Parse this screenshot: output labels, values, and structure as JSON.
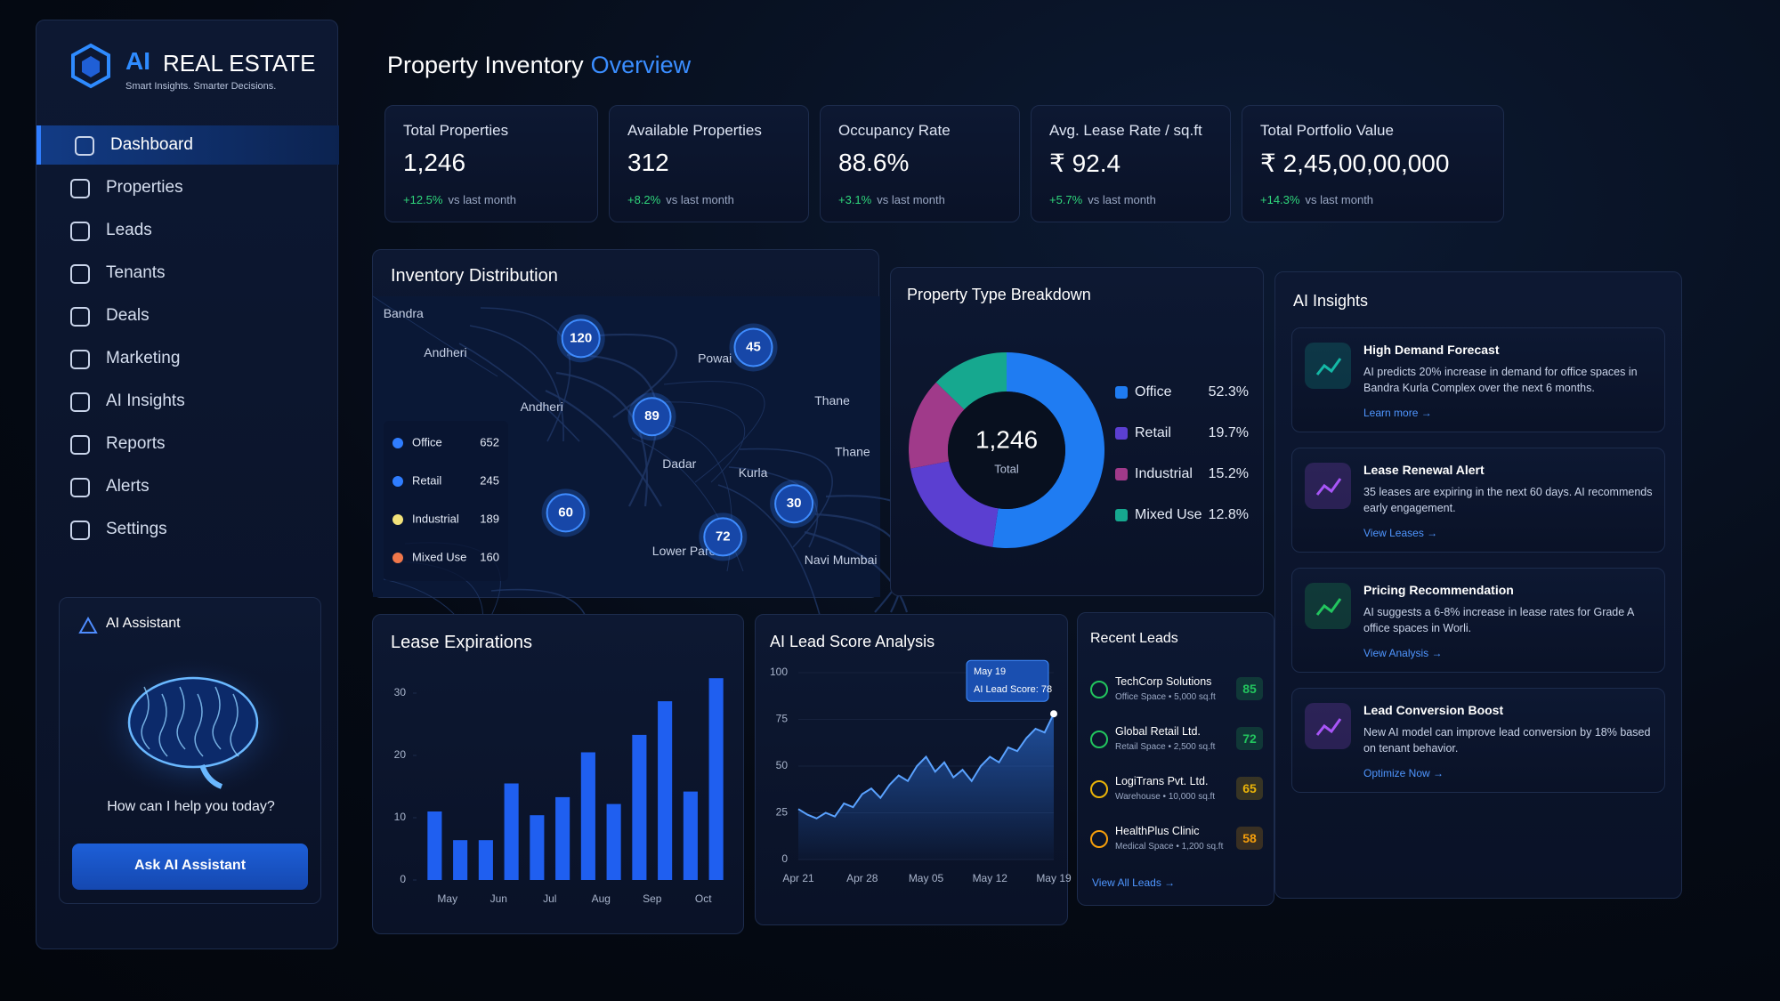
{
  "brand": {
    "logo": "AI",
    "name": "REAL ESTATE",
    "tagline": "Smart Insights. Smarter Decisions."
  },
  "nav": [
    "Dashboard",
    "Properties",
    "Leads",
    "Tenants",
    "Deals",
    "Marketing",
    "AI Insights",
    "Reports",
    "Alerts",
    "Settings"
  ],
  "assistant": {
    "title": "AI Assistant",
    "prompt": "How can I help you today?",
    "button": "Ask AI Assistant"
  },
  "header": {
    "title": "Property Inventory",
    "highlight": "Overview"
  },
  "kpis": [
    {
      "label": "Total Properties",
      "value": "1,246",
      "change": "+12.5%",
      "note": "vs last month"
    },
    {
      "label": "Available Properties",
      "value": "312",
      "change": "+8.2%",
      "note": "vs last month"
    },
    {
      "label": "Occupancy Rate",
      "value": "88.6%",
      "change": "+3.1%",
      "note": "vs last month"
    },
    {
      "label": "Avg. Lease Rate / sq.ft",
      "value": "₹ 92.4",
      "change": "+5.7%",
      "note": "vs last month"
    },
    {
      "label": "Total Portfolio Value",
      "value": "₹ 2,45,00,00,000",
      "change": "+14.3%",
      "note": "vs last month"
    }
  ],
  "inventory": {
    "title": "Inventory Distribution",
    "places": [
      "Bandra",
      "Andheri",
      "Powai",
      "Andheri",
      "Thane",
      "Thane",
      "Dadar",
      "Kurla",
      "Lower Parel",
      "Navi Mumbai"
    ],
    "clusters": [
      120,
      45,
      89,
      60,
      30,
      72
    ],
    "legend": [
      {
        "name": "Office",
        "value": 652,
        "color": "#2f7dff"
      },
      {
        "name": "Retail",
        "value": 245,
        "color": "#2f7dff"
      },
      {
        "name": "Industrial",
        "value": 189,
        "color": "#f2e27a"
      },
      {
        "name": "Mixed Use",
        "value": 160,
        "color": "#f0774a"
      }
    ]
  },
  "property_breakdown": {
    "type": "donut",
    "title": "Property Type Breakdown",
    "center_value": "1,246",
    "center_label": "Total",
    "categories": [
      "Office",
      "Retail",
      "Industrial",
      "Mixed Use"
    ],
    "values": [
      52.3,
      19.7,
      15.2,
      12.8
    ],
    "value_labels": [
      "52.3%",
      "19.7%",
      "15.2%",
      "12.8%"
    ],
    "colors": [
      "#1f7cf2",
      "#5b3fd1",
      "#a03a8a",
      "#16a88f"
    ]
  },
  "lease_expirations": {
    "type": "bar",
    "title": "Lease Expirations",
    "categories": [
      "May",
      null,
      "Jun",
      null,
      "Jul",
      null,
      "Aug",
      null,
      "Sep",
      null,
      "Oct",
      null
    ],
    "values": [
      11,
      6.4,
      6.4,
      15.5,
      10.4,
      13.3,
      20.5,
      12.2,
      23.3,
      28.7,
      14.2,
      32.4
    ],
    "color": "#1f5ff0",
    "ylim": [
      0,
      33
    ],
    "yticks": [
      0,
      10,
      20,
      30
    ],
    "grid": false
  },
  "lead_score": {
    "type": "area",
    "title": "AI Lead Score Analysis",
    "categories": [
      "Apr 21",
      null,
      null,
      null,
      null,
      null,
      null,
      "Apr 28",
      null,
      null,
      null,
      null,
      null,
      null,
      "May 05",
      null,
      null,
      null,
      null,
      null,
      null,
      "May 12",
      null,
      null,
      null,
      null,
      null,
      null,
      "May 19"
    ],
    "values": [
      27,
      24,
      22,
      25,
      23,
      30,
      28,
      35,
      38,
      33,
      40,
      45,
      42,
      50,
      55,
      47,
      52,
      44,
      48,
      42,
      50,
      55,
      52,
      60,
      58,
      65,
      70,
      68,
      78
    ],
    "color": "#2f7df6",
    "ylim": [
      0,
      100
    ],
    "yticks": [
      0,
      25,
      50,
      75,
      100
    ],
    "grid": true,
    "tooltip": {
      "date": "May 19",
      "text": "AI Lead Score: 78"
    }
  },
  "recent_leads": {
    "title": "Recent Leads",
    "items": [
      {
        "name": "TechCorp Solutions",
        "detail": "Office Space • 5,000 sq.ft",
        "score": 85,
        "color": "#22c55e"
      },
      {
        "name": "Global Retail Ltd.",
        "detail": "Retail Space • 2,500 sq.ft",
        "score": 72,
        "color": "#22c55e"
      },
      {
        "name": "LogiTrans Pvt. Ltd.",
        "detail": "Warehouse • 10,000 sq.ft",
        "score": 65,
        "color": "#eab308"
      },
      {
        "name": "HealthPlus Clinic",
        "detail": "Medical Space • 1,200 sq.ft",
        "score": 58,
        "color": "#f59e0b"
      }
    ],
    "link": "View All Leads →"
  },
  "insights": {
    "title": "AI Insights",
    "items": [
      {
        "title": "High Demand Forecast",
        "text": "AI predicts 20% increase in demand for office spaces in Bandra Kurla Complex over the next 6 months.",
        "link": "Learn more →",
        "color": "#14b8a6"
      },
      {
        "title": "Lease Renewal Alert",
        "text": "35 leases are expiring in the next 60 days. AI recommends early engagement.",
        "link": "View Leases →",
        "color": "#a855f7"
      },
      {
        "title": "Pricing Recommendation",
        "text": "AI suggests a 6-8% increase in lease rates for Grade A office spaces in Worli.",
        "link": "View Analysis →",
        "color": "#22c55e"
      },
      {
        "title": "Lead Conversion Boost",
        "text": "New AI model can improve lead conversion by 18% based on tenant behavior.",
        "link": "Optimize Now →",
        "color": "#a855f7"
      }
    ]
  }
}
